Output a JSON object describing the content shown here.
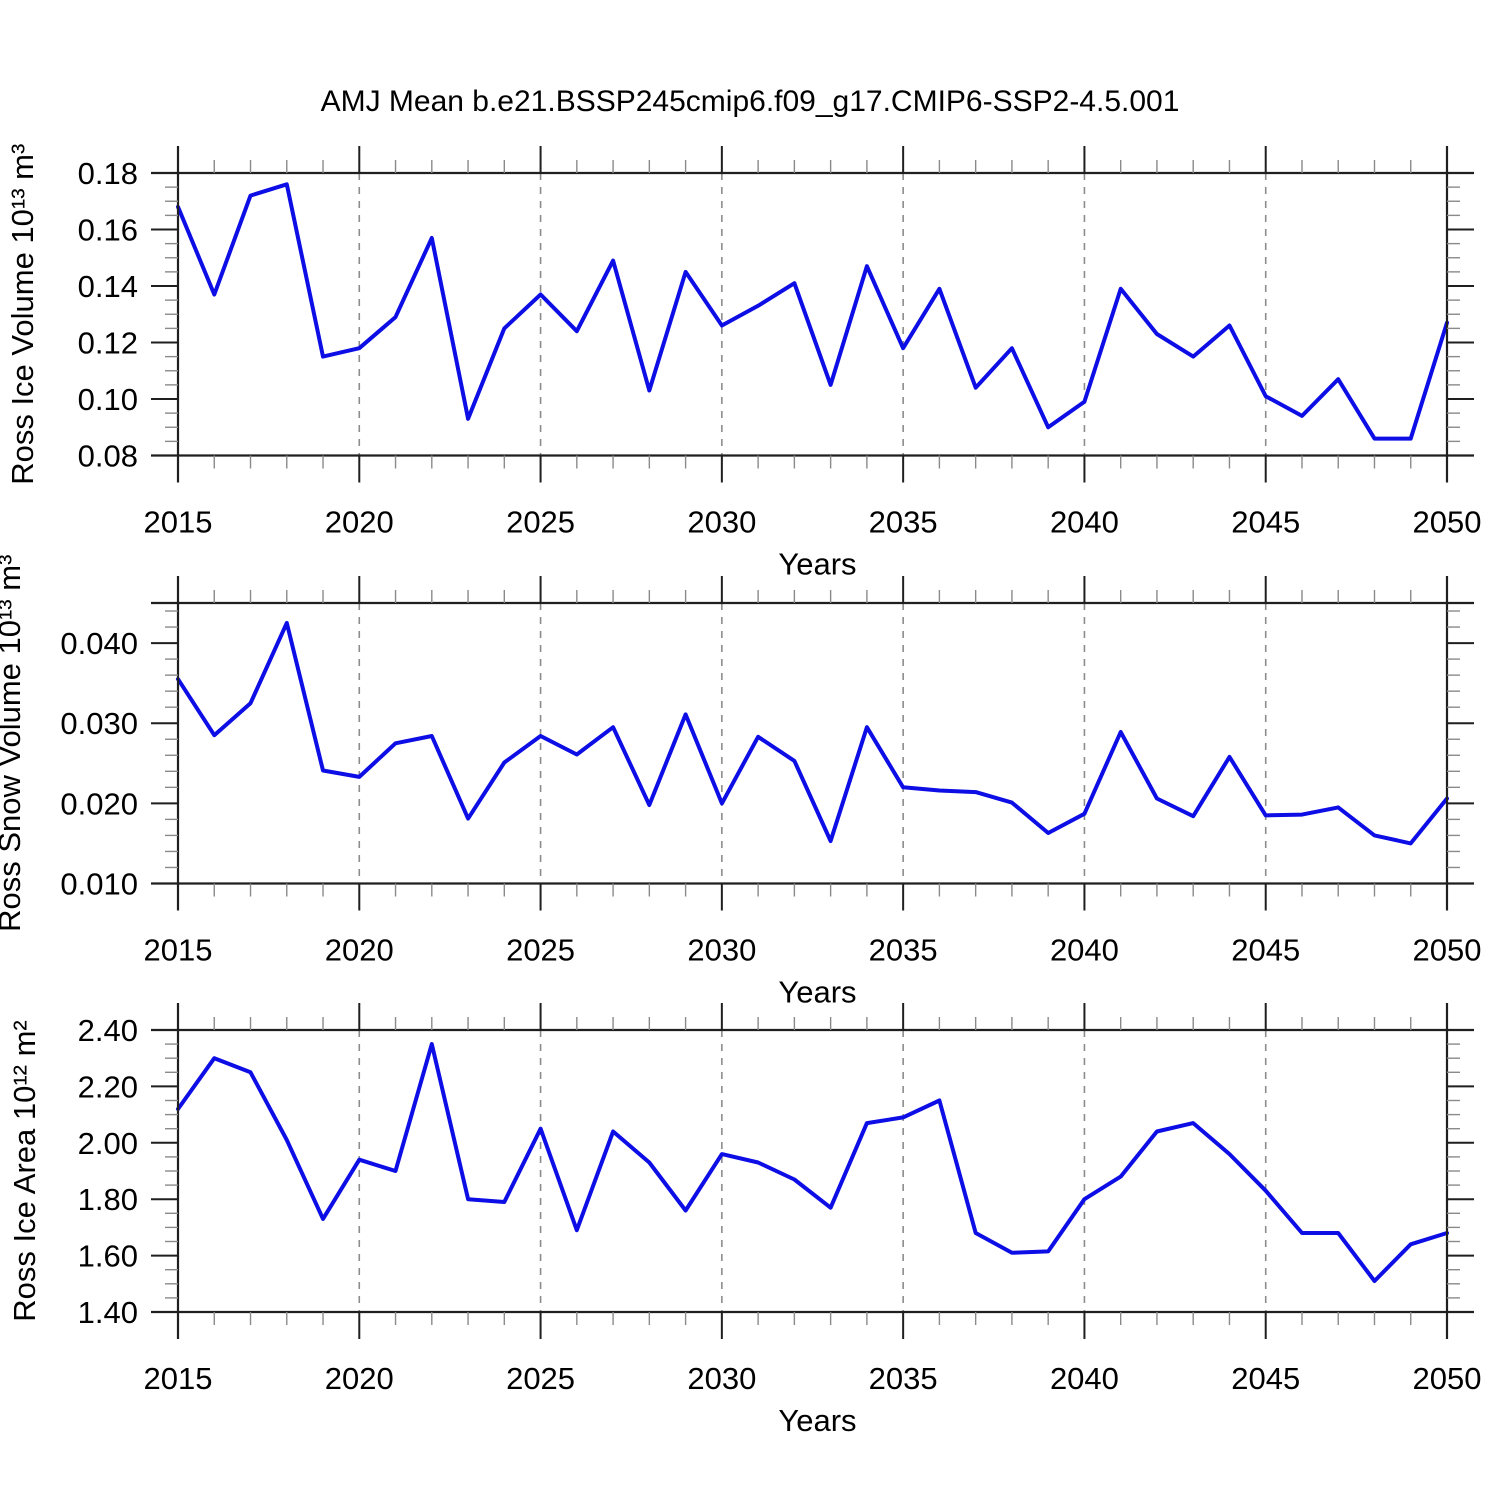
{
  "title": "AMJ Mean b.e21.BSSP245cmip6.f09_g17.CMIP6-SSP2-4.5.001",
  "colors": {
    "line": "#0d0de6",
    "grid": "#8c8c8c",
    "frame": "#1f1f1f",
    "minor_tick": "#8a8a8a",
    "background": "#ffffff"
  },
  "x_axis": {
    "label": "Years",
    "range": [
      2015,
      2050
    ],
    "major_ticks": [
      2015,
      2020,
      2025,
      2030,
      2035,
      2040,
      2045,
      2050
    ],
    "minor_step": 1
  },
  "chart_data": [
    {
      "type": "line",
      "ylabel": "Ross Ice Volume 10¹³ m³",
      "xlabel": "Years",
      "ylim": [
        0.08,
        0.18
      ],
      "yticks": [
        0.08,
        0.1,
        0.12,
        0.14,
        0.16,
        0.18
      ],
      "ytick_labels": [
        "0.08",
        "0.10",
        "0.12",
        "0.14",
        "0.16",
        "0.18"
      ],
      "y_minor_step": 0.005,
      "grid": "dashed-vertical",
      "legend": "none",
      "x": [
        2015,
        2016,
        2017,
        2018,
        2019,
        2020,
        2021,
        2022,
        2023,
        2024,
        2025,
        2026,
        2027,
        2028,
        2029,
        2030,
        2031,
        2032,
        2033,
        2034,
        2035,
        2036,
        2037,
        2038,
        2039,
        2040,
        2041,
        2042,
        2043,
        2044,
        2045,
        2046,
        2047,
        2048,
        2049,
        2050
      ],
      "values": [
        0.168,
        0.137,
        0.172,
        0.176,
        0.115,
        0.118,
        0.129,
        0.157,
        0.093,
        0.125,
        0.137,
        0.124,
        0.149,
        0.103,
        0.145,
        0.126,
        0.133,
        0.141,
        0.105,
        0.147,
        0.118,
        0.139,
        0.104,
        0.118,
        0.09,
        0.099,
        0.139,
        0.123,
        0.115,
        0.126,
        0.101,
        0.094,
        0.107,
        0.086,
        0.086,
        0.127
      ]
    },
    {
      "type": "line",
      "ylabel": "Ross Snow Volume 10¹³ m³",
      "xlabel": "Years",
      "ylim": [
        0.01,
        0.045
      ],
      "yticks": [
        0.01,
        0.02,
        0.03,
        0.04
      ],
      "ytick_labels": [
        "0.010",
        "0.020",
        "0.030",
        "0.040"
      ],
      "y_minor_step": 0.002,
      "grid": "dashed-vertical",
      "legend": "none",
      "x": [
        2015,
        2016,
        2017,
        2018,
        2019,
        2020,
        2021,
        2022,
        2023,
        2024,
        2025,
        2026,
        2027,
        2028,
        2029,
        2030,
        2031,
        2032,
        2033,
        2034,
        2035,
        2036,
        2037,
        2038,
        2039,
        2040,
        2041,
        2042,
        2043,
        2044,
        2045,
        2046,
        2047,
        2048,
        2049,
        2050
      ],
      "values": [
        0.0355,
        0.0285,
        0.0325,
        0.0425,
        0.0241,
        0.0233,
        0.0275,
        0.0284,
        0.0181,
        0.0251,
        0.0284,
        0.0261,
        0.0295,
        0.0198,
        0.0311,
        0.02,
        0.0283,
        0.0253,
        0.0153,
        0.0295,
        0.022,
        0.0216,
        0.0214,
        0.0201,
        0.0163,
        0.0187,
        0.0289,
        0.0206,
        0.0184,
        0.0258,
        0.0185,
        0.0186,
        0.0195,
        0.016,
        0.015,
        0.0206
      ]
    },
    {
      "type": "line",
      "ylabel": "Ross Ice Area 10¹² m²",
      "xlabel": "Years",
      "ylim": [
        1.4,
        2.4
      ],
      "yticks": [
        1.4,
        1.6,
        1.8,
        2.0,
        2.2,
        2.4
      ],
      "ytick_labels": [
        "1.40",
        "1.60",
        "1.80",
        "2.00",
        "2.20",
        "2.40"
      ],
      "y_minor_step": 0.05,
      "grid": "dashed-vertical",
      "legend": "none",
      "x": [
        2015,
        2016,
        2017,
        2018,
        2019,
        2020,
        2021,
        2022,
        2023,
        2024,
        2025,
        2026,
        2027,
        2028,
        2029,
        2030,
        2031,
        2032,
        2033,
        2034,
        2035,
        2036,
        2037,
        2038,
        2039,
        2040,
        2041,
        2042,
        2043,
        2044,
        2045,
        2046,
        2047,
        2048,
        2049,
        2050
      ],
      "values": [
        2.12,
        2.3,
        2.25,
        2.01,
        1.73,
        1.94,
        1.9,
        2.35,
        1.8,
        1.79,
        2.05,
        1.69,
        2.04,
        1.93,
        1.76,
        1.96,
        1.93,
        1.87,
        1.77,
        2.07,
        2.09,
        2.15,
        1.68,
        1.61,
        1.615,
        1.8,
        1.88,
        2.04,
        2.07,
        1.96,
        1.83,
        1.68,
        1.68,
        1.51,
        1.64,
        1.68
      ]
    }
  ]
}
